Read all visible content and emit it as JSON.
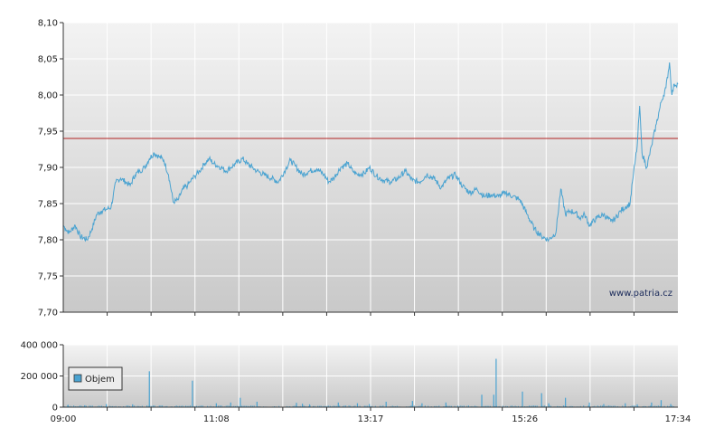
{
  "watermark": "www.patria.cz",
  "colors": {
    "price_line": "#4aa3d1",
    "reference_line": "#b22222",
    "volume_bar": "#4aa3d1",
    "grid": "#ffffff",
    "bg_top": "#f3f3f3",
    "bg_bottom": "#c9c9c9",
    "legend_swatch": "#4aa3d1"
  },
  "chart_data": [
    {
      "type": "line",
      "title": "",
      "xlabel": "",
      "ylabel": "",
      "x_tick_labels": [
        "09:00",
        "11:08",
        "13:17",
        "15:26",
        "17:34"
      ],
      "x_tick_minutes": [
        0,
        128,
        257,
        386,
        514
      ],
      "xlim_minutes": [
        0,
        514
      ],
      "ylim": [
        7.7,
        8.1
      ],
      "y_ticks": [
        "7,70",
        "7,75",
        "7,80",
        "7,85",
        "7,90",
        "7,95",
        "8,00",
        "8,05",
        "8,10"
      ],
      "y_tick_values": [
        7.7,
        7.75,
        7.8,
        7.85,
        7.9,
        7.95,
        8.0,
        8.05,
        8.1
      ],
      "reference_line": 7.94,
      "grid": true,
      "series": [
        {
          "name": "",
          "x_minutes": [
            0,
            2,
            5,
            10,
            14,
            20,
            24,
            28,
            32,
            36,
            40,
            44,
            48,
            52,
            56,
            60,
            64,
            68,
            72,
            76,
            80,
            84,
            88,
            92,
            96,
            100,
            104,
            106,
            110,
            114,
            118,
            122,
            126,
            132,
            136,
            140,
            144,
            150,
            154,
            158,
            162,
            168,
            174,
            180,
            186,
            190,
            194,
            200,
            206,
            212,
            218,
            222,
            226,
            232,
            238,
            242,
            246,
            252,
            256,
            262,
            268,
            274,
            280,
            286,
            292,
            298,
            304,
            310,
            316,
            322,
            328,
            334,
            340,
            346,
            352,
            358,
            364,
            370,
            376,
            382,
            388,
            394,
            400,
            406,
            412,
            416,
            420,
            424,
            428,
            432,
            436,
            440,
            446,
            452,
            458,
            462,
            466,
            470,
            474,
            476,
            478,
            480,
            482,
            484,
            488,
            492,
            496,
            500,
            504,
            507,
            509,
            511,
            514
          ],
          "values": [
            7.82,
            7.815,
            7.81,
            7.82,
            7.805,
            7.8,
            7.815,
            7.835,
            7.84,
            7.842,
            7.845,
            7.88,
            7.885,
            7.88,
            7.875,
            7.89,
            7.895,
            7.9,
            7.912,
            7.92,
            7.915,
            7.91,
            7.89,
            7.852,
            7.855,
            7.87,
            7.875,
            7.88,
            7.888,
            7.895,
            7.905,
            7.912,
            7.905,
            7.9,
            7.895,
            7.9,
            7.905,
            7.912,
            7.905,
            7.9,
            7.895,
            7.89,
            7.885,
            7.88,
            7.898,
            7.91,
            7.902,
            7.89,
            7.895,
            7.898,
            7.89,
            7.88,
            7.885,
            7.9,
            7.905,
            7.895,
            7.89,
            7.892,
            7.9,
            7.888,
            7.882,
            7.88,
            7.885,
            7.895,
            7.882,
            7.88,
            7.89,
            7.885,
            7.872,
            7.885,
            7.89,
            7.874,
            7.865,
            7.87,
            7.86,
            7.862,
            7.86,
            7.865,
            7.86,
            7.855,
            7.835,
            7.815,
            7.805,
            7.8,
            7.81,
            7.87,
            7.835,
            7.84,
            7.838,
            7.83,
            7.835,
            7.82,
            7.83,
            7.835,
            7.825,
            7.83,
            7.84,
            7.845,
            7.85,
            7.88,
            7.905,
            7.93,
            7.985,
            7.92,
            7.9,
            7.93,
            7.96,
            7.99,
            8.01,
            8.045,
            8.0,
            8.015,
            8.015
          ]
        }
      ]
    },
    {
      "type": "bar",
      "title": "",
      "xlabel": "",
      "ylabel": "",
      "legend": "Objem",
      "legend_position": "left",
      "ylim": [
        0,
        400000
      ],
      "y_ticks": [
        "0",
        "200 000",
        "400 000"
      ],
      "y_tick_values": [
        0,
        200000,
        400000
      ],
      "x_tick_labels": [
        "09:00",
        "11:08",
        "13:17",
        "15:26",
        "17:34"
      ],
      "xlim_minutes": [
        0,
        514
      ],
      "grid": true,
      "series": [
        {
          "name": "Objem",
          "x_minutes": [
            4,
            18,
            36,
            58,
            72,
            108,
            128,
            140,
            148,
            162,
            195,
            200,
            206,
            230,
            246,
            256,
            270,
            292,
            300,
            320,
            350,
            360,
            362,
            384,
            400,
            406,
            420,
            440,
            452,
            470,
            480,
            492,
            500,
            508
          ],
          "values": [
            15000,
            12000,
            20000,
            18000,
            230000,
            170000,
            25000,
            30000,
            60000,
            35000,
            28000,
            22000,
            18000,
            30000,
            25000,
            20000,
            35000,
            40000,
            25000,
            30000,
            80000,
            80000,
            310000,
            100000,
            90000,
            25000,
            60000,
            30000,
            20000,
            25000,
            18000,
            30000,
            45000,
            20000
          ]
        }
      ]
    }
  ]
}
